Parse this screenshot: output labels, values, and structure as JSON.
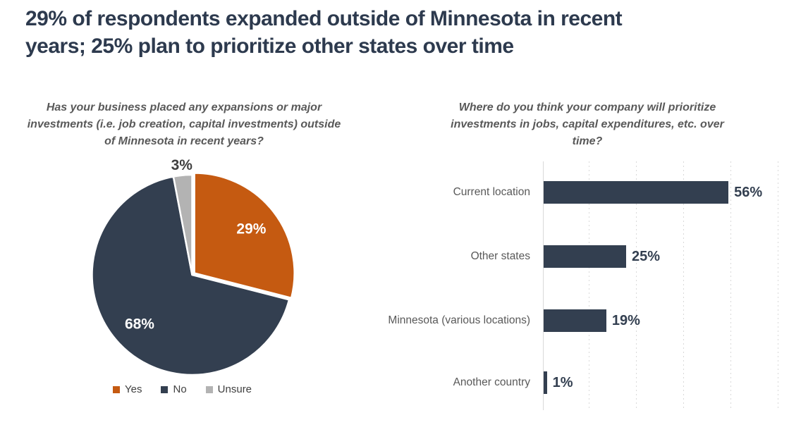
{
  "header": {
    "title_lines": [
      "29% of respondents expanded outside of Minnesota in recent",
      "years; 25% plan to prioritize other states over time"
    ],
    "title_color": "#2D3A4E"
  },
  "pie_section": {
    "question_lines": [
      "Has your business placed any expansions or major",
      "investments (i.e. job creation, capital investments) outside",
      "of Minnesota in recent years?"
    ],
    "legend": [
      {
        "label": "Yes",
        "color": "#C55A11"
      },
      {
        "label": "No",
        "color": "#333F50"
      },
      {
        "label": "Unsure",
        "color": "#B3B3B3"
      }
    ]
  },
  "bar_section": {
    "question_lines": [
      "Where do you think your company will prioritize",
      "investments in jobs, capital expenditures, etc. over",
      "time?"
    ]
  },
  "theme": {
    "orange": "#C55A11",
    "navy": "#333F50",
    "gray": "#B3B3B3",
    "question_text": "#595959",
    "category_text": "#595959",
    "outside_label": "#3F3F3F",
    "gridline": "#D9D9D9",
    "data_label_on_slice": "#FFFFFF",
    "background": "#FFFFFF"
  },
  "chart_data": [
    {
      "type": "pie",
      "title": "Has your business placed any expansions or major investments (i.e. job creation, capital investments) outside of Minnesota in recent years?",
      "labels": [
        "Yes",
        "No",
        "Unsure"
      ],
      "values": [
        29,
        68,
        3
      ],
      "data_labels": [
        "29%",
        "68%",
        "3%"
      ],
      "colors": [
        "#C55A11",
        "#333F50",
        "#B3B3B3"
      ],
      "start_angle_deg": 0,
      "direction": "clockwise",
      "exploded_slice": "Yes",
      "legend_position": "bottom"
    },
    {
      "type": "bar",
      "orientation": "horizontal",
      "title": "Where do you think your company will prioritize investments in jobs, capital expenditures, etc. over time?",
      "categories": [
        "Current location",
        "Other states",
        "Minnesota (various locations)",
        "Another country"
      ],
      "values": [
        56,
        25,
        19,
        1
      ],
      "data_labels": [
        "56%",
        "25%",
        "19%",
        "1%"
      ],
      "bar_color": "#333F50",
      "xlim": [
        0,
        75
      ],
      "grid": "vertical-dashed",
      "axis_tick_labels_shown": false,
      "legend_position": "none"
    }
  ]
}
